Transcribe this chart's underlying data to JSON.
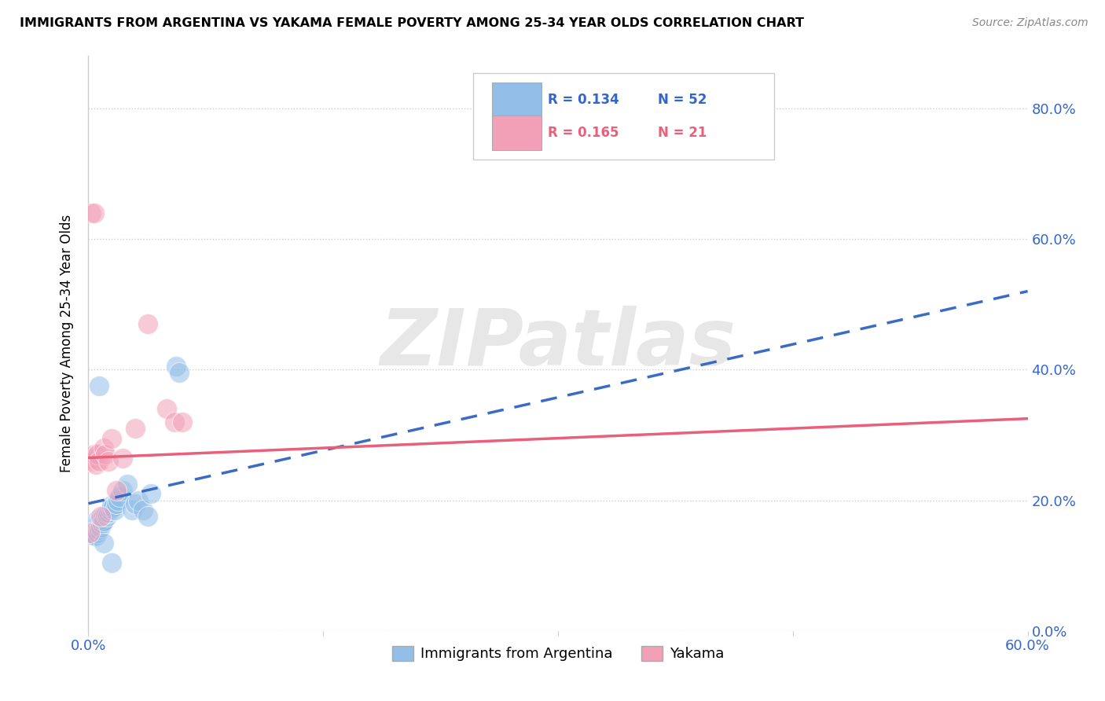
{
  "title": "IMMIGRANTS FROM ARGENTINA VS YAKAMA FEMALE POVERTY AMONG 25-34 YEAR OLDS CORRELATION CHART",
  "source": "Source: ZipAtlas.com",
  "ylabel": "Female Poverty Among 25-34 Year Olds",
  "xlim": [
    0.0,
    0.6
  ],
  "ylim": [
    0.0,
    0.88
  ],
  "legend_r1": "R = 0.134",
  "legend_n1": "N = 52",
  "legend_r2": "R = 0.165",
  "legend_n2": "N = 21",
  "blue_color": "#92BEE8",
  "pink_color": "#F2A0B8",
  "blue_line_color": "#3B6BC4",
  "pink_line_color": "#E8607A",
  "text_blue": "#3366CC",
  "text_pink": "#E8607A",
  "watermark": "ZIPatlas",
  "blue_line_start_y": 0.195,
  "blue_line_end_y": 0.52,
  "blue_line_start_x": 0.0,
  "blue_line_end_x": 0.6,
  "pink_line_start_y": 0.265,
  "pink_line_end_y": 0.325,
  "pink_line_start_x": 0.0,
  "pink_line_end_x": 0.6,
  "blue_scatter_x": [
    0.001,
    0.002,
    0.002,
    0.002,
    0.003,
    0.003,
    0.003,
    0.003,
    0.004,
    0.004,
    0.004,
    0.005,
    0.005,
    0.005,
    0.006,
    0.006,
    0.006,
    0.007,
    0.007,
    0.007,
    0.008,
    0.008,
    0.008,
    0.009,
    0.009,
    0.01,
    0.01,
    0.011,
    0.012,
    0.012,
    0.013,
    0.014,
    0.015,
    0.015,
    0.016,
    0.017,
    0.018,
    0.019,
    0.02,
    0.022,
    0.025,
    0.028,
    0.03,
    0.032,
    0.035,
    0.038,
    0.04,
    0.007,
    0.056,
    0.058,
    0.01,
    0.015
  ],
  "blue_scatter_y": [
    0.155,
    0.15,
    0.148,
    0.152,
    0.147,
    0.15,
    0.153,
    0.158,
    0.16,
    0.155,
    0.148,
    0.145,
    0.155,
    0.162,
    0.165,
    0.15,
    0.17,
    0.16,
    0.155,
    0.168,
    0.162,
    0.158,
    0.17,
    0.172,
    0.165,
    0.175,
    0.168,
    0.178,
    0.175,
    0.18,
    0.182,
    0.185,
    0.188,
    0.192,
    0.19,
    0.185,
    0.195,
    0.2,
    0.205,
    0.215,
    0.225,
    0.185,
    0.195,
    0.2,
    0.185,
    0.175,
    0.21,
    0.375,
    0.405,
    0.395,
    0.135,
    0.105
  ],
  "pink_scatter_x": [
    0.001,
    0.002,
    0.003,
    0.004,
    0.005,
    0.006,
    0.007,
    0.008,
    0.01,
    0.011,
    0.013,
    0.015,
    0.018,
    0.022,
    0.03,
    0.038,
    0.05,
    0.055,
    0.06,
    0.002,
    0.004
  ],
  "pink_scatter_y": [
    0.15,
    0.265,
    0.26,
    0.27,
    0.255,
    0.27,
    0.26,
    0.175,
    0.28,
    0.27,
    0.26,
    0.295,
    0.215,
    0.265,
    0.31,
    0.47,
    0.34,
    0.32,
    0.32,
    0.64,
    0.64
  ]
}
